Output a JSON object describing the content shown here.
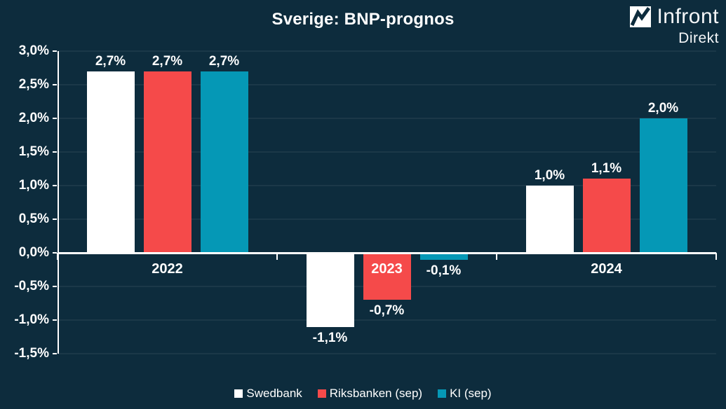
{
  "logo": {
    "name": "Infront",
    "sub": "Direkt",
    "icon": "infront-zigzag-chart-icon",
    "icon_bg": "#ffffff",
    "icon_line": "#0d2c3d"
  },
  "colors": {
    "background": "#0d2c3d",
    "axis": "#ffffff",
    "gridline": "rgba(255,255,255,0.06)",
    "text": "#ffffff"
  },
  "chart_data": {
    "type": "bar",
    "title": "Sverige: BNP-prognos",
    "categories": [
      "2022",
      "2023",
      "2024"
    ],
    "series": [
      {
        "name": "Swedbank",
        "color": "#ffffff",
        "values": [
          2.7,
          -1.1,
          1.0
        ],
        "labels": [
          "2,7%",
          "-1,1%",
          "1,0%"
        ]
      },
      {
        "name": "Riksbanken (sep)",
        "color": "#f54a4a",
        "values": [
          2.7,
          -0.7,
          1.1
        ],
        "labels": [
          "2,7%",
          "-0,7%",
          "1,1%"
        ]
      },
      {
        "name": "KI (sep)",
        "color": "#0598b6",
        "values": [
          2.7,
          -0.1,
          2.0
        ],
        "labels": [
          "2,7%",
          "-0,1%",
          "2,0%"
        ]
      }
    ],
    "ylim": [
      -1.5,
      3.0
    ],
    "ytick_step": 0.5,
    "ytick_labels": [
      "3,0%",
      "2,5%",
      "2,0%",
      "1,5%",
      "1,0%",
      "0,5%",
      "0,0%",
      "-0,5%",
      "-1,0%",
      "-1,5%"
    ],
    "grid": true,
    "legend_position": "bottom"
  }
}
